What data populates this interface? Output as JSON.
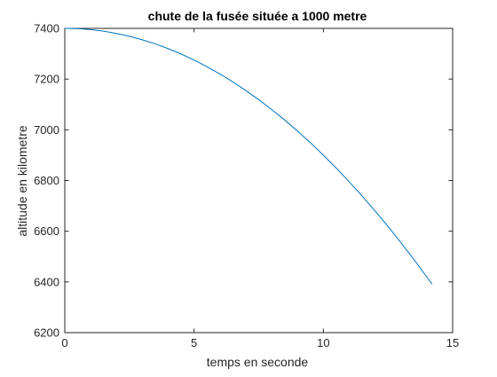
{
  "chart_data": {
    "type": "line",
    "title": "chute de la fusée située a 1000 metre",
    "xlabel": "temps en seconde",
    "ylabel": "altitude en kilometre",
    "xlim": [
      0,
      15
    ],
    "ylim": [
      6200,
      7400
    ],
    "xticks": [
      "0",
      "5",
      "10",
      "15"
    ],
    "yticks": [
      "6200",
      "6400",
      "6600",
      "6800",
      "7000",
      "7200",
      "7400"
    ],
    "grid": false,
    "line_color": "#0072BD",
    "series": [
      {
        "x": [
          0,
          0.5,
          1,
          1.5,
          2,
          2.5,
          3,
          3.5,
          4,
          4.5,
          5,
          5.5,
          6,
          6.5,
          7,
          7.5,
          8,
          8.5,
          9,
          9.5,
          10,
          10.5,
          11,
          11.5,
          12,
          12.5,
          13,
          13.5,
          14,
          14.2
        ],
        "y": [
          7400,
          7399,
          7395,
          7389,
          7380,
          7369,
          7355,
          7339,
          7320,
          7299,
          7275,
          7249,
          7220,
          7189,
          7155,
          7119,
          7080,
          7039,
          6995,
          6949,
          6900,
          6849,
          6795,
          6739,
          6680,
          6619,
          6555,
          6489,
          6420,
          6392
        ]
      }
    ]
  }
}
